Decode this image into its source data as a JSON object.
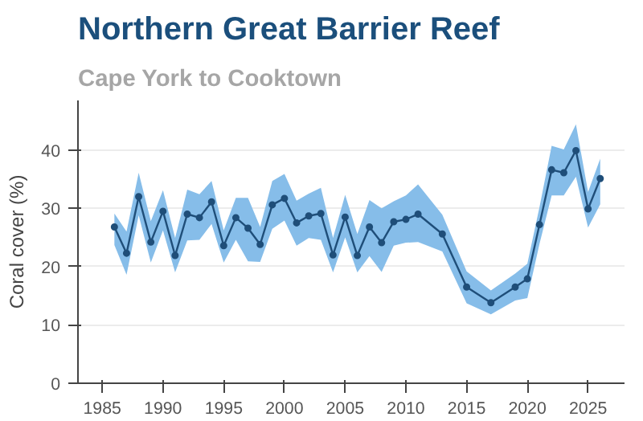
{
  "chart_data": {
    "type": "line",
    "title": "Northern Great Barrier Reef",
    "subtitle": "Cape York to Cooktown",
    "ylabel": "Coral cover (%)",
    "x": [
      1986,
      1987,
      1988,
      1989,
      1990,
      1991,
      1992,
      1993,
      1994,
      1995,
      1996,
      1997,
      1998,
      1999,
      2000,
      2001,
      2002,
      2003,
      2004,
      2005,
      2006,
      2007,
      2008,
      2009,
      2010,
      2011,
      2013,
      2015,
      2017,
      2019,
      2020,
      2021,
      2022,
      2023,
      2024,
      2025,
      2026
    ],
    "series": [
      {
        "color": "#1f4e79",
        "values": [
          26.8,
          22.3,
          32.0,
          24.2,
          29.5,
          21.9,
          29.0,
          28.4,
          31.1,
          23.6,
          28.4,
          26.6,
          23.8,
          30.6,
          31.7,
          27.5,
          28.7,
          29.1,
          22.0,
          28.5,
          21.9,
          26.8,
          24.1,
          27.7,
          28.1,
          29.0,
          25.6,
          16.5,
          13.8,
          16.5,
          17.9,
          27.2,
          36.6,
          36.1,
          39.9,
          29.9,
          35.1
        ],
        "lower": [
          23.7,
          18.6,
          28.8,
          20.7,
          26.2,
          19.0,
          24.5,
          24.6,
          27.3,
          20.7,
          24.6,
          20.9,
          20.8,
          26.5,
          27.9,
          23.6,
          24.9,
          24.6,
          19.0,
          25.0,
          19.0,
          21.8,
          19.1,
          23.6,
          24.1,
          24.2,
          22.6,
          13.7,
          11.8,
          14.2,
          14.6,
          23.9,
          32.2,
          32.2,
          35.4,
          26.7,
          30.7
        ],
        "upper": [
          29.1,
          26.0,
          36.1,
          27.8,
          33.1,
          24.9,
          33.2,
          32.4,
          34.7,
          26.2,
          31.8,
          31.8,
          26.8,
          34.7,
          35.9,
          31.3,
          32.5,
          33.5,
          24.9,
          32.3,
          25.6,
          31.4,
          30.0,
          31.2,
          32.2,
          34.1,
          28.9,
          19.2,
          15.9,
          18.8,
          20.5,
          30.2,
          40.7,
          40.1,
          44.4,
          32.8,
          38.5
        ]
      }
    ],
    "xlim": [
      1983,
      2028
    ],
    "ylim": [
      0,
      48.5
    ],
    "xticks": [
      1985,
      1990,
      1995,
      2000,
      2005,
      2010,
      2015,
      2020,
      2025
    ],
    "yticks": [
      0,
      10,
      20,
      30,
      40
    ],
    "grid": "y",
    "marker": "circle",
    "line_style": "solid"
  }
}
